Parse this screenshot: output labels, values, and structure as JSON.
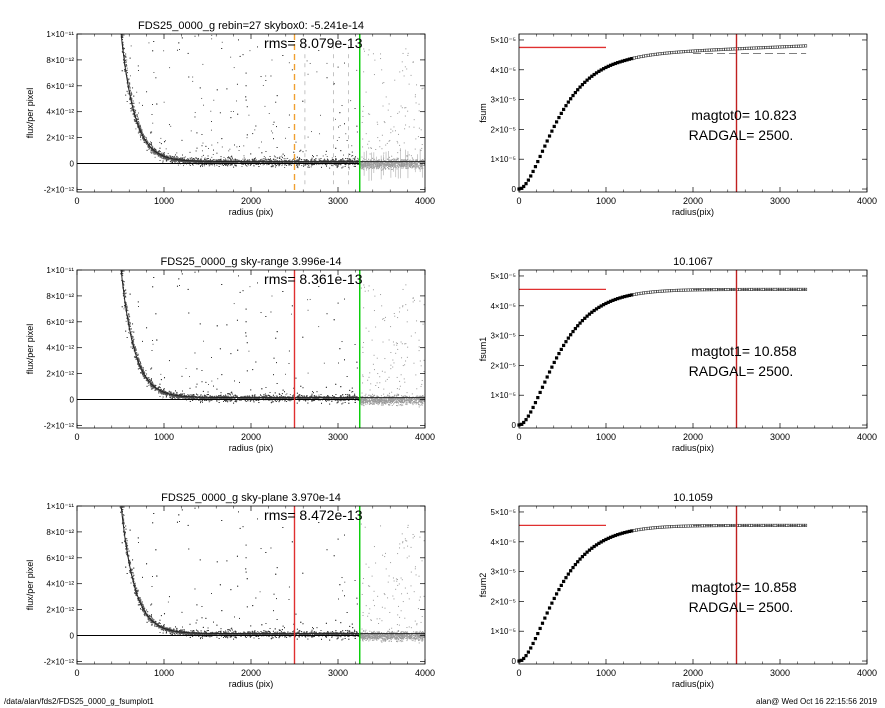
{
  "footer": {
    "left": "/data/alan/fds2/FDS25_0000_g_fsumplot1",
    "right": "alan@  Wed Oct 16 22:15:56 2019"
  },
  "chart_data": [
    {
      "type": "scatter",
      "title": "FDS25_0000_g rebin=27    skybox0: -5.241e-14",
      "annotation": "rms= 8.079e-13",
      "xlabel": "radius (pix)",
      "ylabel": "flux/per pixel",
      "xlim": [
        0,
        4000
      ],
      "ylim": [
        -2.2e-12,
        1e-11
      ],
      "xticks": [
        0,
        1000,
        2000,
        3000,
        4000
      ],
      "yticks": [
        [
          -2e-12,
          "-2×10⁻¹²"
        ],
        [
          0,
          "0"
        ],
        [
          2e-12,
          "2×10⁻¹²"
        ],
        [
          4e-12,
          "4×10⁻¹²"
        ],
        [
          6e-12,
          "6×10⁻¹²"
        ],
        [
          8e-12,
          "8×10⁻¹²"
        ],
        [
          1e-11,
          "1×10⁻¹¹"
        ]
      ],
      "profile": {
        "amplitude": 2.6e-10,
        "scale_length": 155,
        "cutoff_x": 3250
      },
      "vlines": [
        {
          "x": 2500,
          "color": "#f0a030",
          "style": "dashed"
        },
        {
          "x": 3250,
          "color": "#00cc00",
          "style": "solid"
        }
      ],
      "gray_verticals": true
    },
    {
      "type": "line",
      "title": "",
      "xlabel": "radius(pix)",
      "ylabel": "fsum",
      "xlim": [
        0,
        4000
      ],
      "ylim": [
        -1e-06,
        5.2e-05
      ],
      "xticks": [
        0,
        1000,
        2000,
        3000,
        4000
      ],
      "yticks": [
        [
          0,
          "0"
        ],
        [
          1e-05,
          "1×10⁻⁵"
        ],
        [
          2e-05,
          "2×10⁻⁵"
        ],
        [
          3e-05,
          "3×10⁻⁵"
        ],
        [
          4e-05,
          "4×10⁻⁵"
        ],
        [
          5e-05,
          "5×10⁻⁵"
        ]
      ],
      "curve": {
        "asymptote": 4.55e-05,
        "scale": 260,
        "tail_slope": 1.2e-09,
        "x_end": 3300
      },
      "plateau": {
        "x0": 0,
        "x1": 1000,
        "y": 4.75e-05
      },
      "vline_x": 2500,
      "dashed_level": 4.55e-05,
      "annotation1": "magtot0=  10.823",
      "annotation2": "RADGAL=   2500."
    },
    {
      "type": "scatter",
      "title": "FDS25_0000_g sky-range  3.996e-14",
      "annotation": "rms= 8.361e-13",
      "xlabel": "radius (pix)",
      "ylabel": "flux/per pixel",
      "xlim": [
        0,
        4000
      ],
      "ylim": [
        -2.2e-12,
        1e-11
      ],
      "xticks": [
        0,
        1000,
        2000,
        3000,
        4000
      ],
      "yticks": [
        [
          -2e-12,
          "-2×10⁻¹²"
        ],
        [
          0,
          "0"
        ],
        [
          2e-12,
          "2×10⁻¹²"
        ],
        [
          4e-12,
          "4×10⁻¹²"
        ],
        [
          6e-12,
          "6×10⁻¹²"
        ],
        [
          8e-12,
          "8×10⁻¹²"
        ],
        [
          1e-11,
          "1×10⁻¹¹"
        ]
      ],
      "profile": {
        "amplitude": 2.6e-10,
        "scale_length": 155,
        "cutoff_x": 3250
      },
      "vlines": [
        {
          "x": 2500,
          "color": "#e03030",
          "style": "solid"
        },
        {
          "x": 3250,
          "color": "#00cc00",
          "style": "solid"
        }
      ],
      "gray_verticals": false
    },
    {
      "type": "line",
      "title": "10.1067",
      "xlabel": "radius(pix)",
      "ylabel": "fsum1",
      "xlim": [
        0,
        4000
      ],
      "ylim": [
        -1e-06,
        5.2e-05
      ],
      "xticks": [
        0,
        1000,
        2000,
        3000,
        4000
      ],
      "yticks": [
        [
          0,
          "0"
        ],
        [
          1e-05,
          "1×10⁻⁵"
        ],
        [
          2e-05,
          "2×10⁻⁵"
        ],
        [
          3e-05,
          "3×10⁻⁵"
        ],
        [
          4e-05,
          "4×10⁻⁵"
        ],
        [
          5e-05,
          "5×10⁻⁵"
        ]
      ],
      "curve": {
        "asymptote": 4.55e-05,
        "scale": 260,
        "tail_slope": 0,
        "x_end": 3300
      },
      "plateau": {
        "x0": 0,
        "x1": 1000,
        "y": 4.55e-05
      },
      "vline_x": 2500,
      "dashed_level": 4.55e-05,
      "annotation1": "magtot1=  10.858",
      "annotation2": "RADGAL=   2500."
    },
    {
      "type": "scatter",
      "title": "FDS25_0000_g sky-plane  3.970e-14",
      "annotation": "rms= 8.472e-13",
      "xlabel": "radius (pix)",
      "ylabel": "flux/per pixel",
      "xlim": [
        0,
        4000
      ],
      "ylim": [
        -2.2e-12,
        1e-11
      ],
      "xticks": [
        0,
        1000,
        2000,
        3000,
        4000
      ],
      "yticks": [
        [
          -2e-12,
          "-2×10⁻¹²"
        ],
        [
          0,
          "0"
        ],
        [
          2e-12,
          "2×10⁻¹²"
        ],
        [
          4e-12,
          "4×10⁻¹²"
        ],
        [
          6e-12,
          "6×10⁻¹²"
        ],
        [
          8e-12,
          "8×10⁻¹²"
        ],
        [
          1e-11,
          "1×10⁻¹¹"
        ]
      ],
      "profile": {
        "amplitude": 2.6e-10,
        "scale_length": 155,
        "cutoff_x": 3250
      },
      "vlines": [
        {
          "x": 2500,
          "color": "#e03030",
          "style": "solid"
        },
        {
          "x": 3250,
          "color": "#00cc00",
          "style": "solid"
        }
      ],
      "gray_verticals": false
    },
    {
      "type": "line",
      "title": "10.1059",
      "xlabel": "radius(pix)",
      "ylabel": "fsum2",
      "xlim": [
        0,
        4000
      ],
      "ylim": [
        -1e-06,
        5.2e-05
      ],
      "xticks": [
        0,
        1000,
        2000,
        3000,
        4000
      ],
      "yticks": [
        [
          0,
          "0"
        ],
        [
          1e-05,
          "1×10⁻⁵"
        ],
        [
          2e-05,
          "2×10⁻⁵"
        ],
        [
          3e-05,
          "3×10⁻⁵"
        ],
        [
          4e-05,
          "4×10⁻⁵"
        ],
        [
          5e-05,
          "5×10⁻⁵"
        ]
      ],
      "curve": {
        "asymptote": 4.55e-05,
        "scale": 260,
        "tail_slope": 0,
        "x_end": 3300
      },
      "plateau": {
        "x0": 0,
        "x1": 1000,
        "y": 4.55e-05
      },
      "vline_x": 2500,
      "dashed_level": 4.55e-05,
      "annotation1": "magtot2=  10.858",
      "annotation2": "RADGAL=   2500."
    }
  ]
}
